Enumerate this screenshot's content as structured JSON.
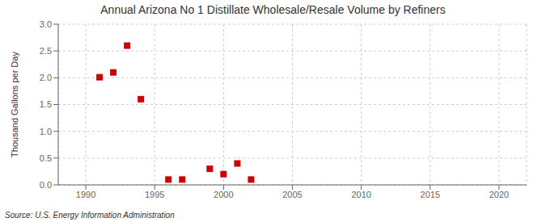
{
  "chart_data": {
    "type": "scatter",
    "title": "Annual Arizona No 1 Distillate Wholesale/Resale Volume by Refiners",
    "ylabel": "Thousand Gallons per Day",
    "annotations": [
      "Source: U.S. Energy Information Administration"
    ],
    "x": [
      1991,
      1992,
      1993,
      1994,
      1996,
      1997,
      1999,
      2000,
      2001,
      2002
    ],
    "values": [
      2.01,
      2.1,
      2.6,
      1.6,
      0.1,
      0.1,
      0.3,
      0.2,
      0.4,
      0.1
    ],
    "color": "#cc0000",
    "marker": "square",
    "xlim": [
      1988,
      2022
    ],
    "ylim": [
      0.0,
      3.0
    ],
    "xticks": [
      1990,
      1995,
      2000,
      2005,
      2010,
      2015,
      2020
    ],
    "yticks": [
      {
        "value": 0.0,
        "label": "0.0"
      },
      0.5,
      {
        "value": 1.0,
        "label": "1.0"
      },
      1.5,
      {
        "value": 2.0,
        "label": "2.0"
      },
      2.5,
      {
        "value": 3.0,
        "label": "3.0"
      }
    ],
    "grid": true
  }
}
